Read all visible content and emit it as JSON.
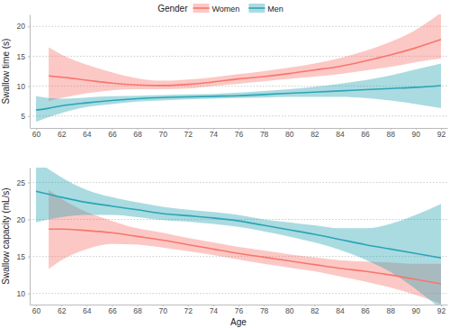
{
  "chart_data": [
    {
      "type": "line",
      "legend": "top",
      "legend_title": "Gender",
      "ylabel": "Swallow time (s)",
      "grid": true,
      "xlim": [
        59.5,
        92.5
      ],
      "xticks": [
        60,
        62,
        64,
        66,
        68,
        70,
        72,
        74,
        76,
        78,
        80,
        82,
        84,
        86,
        88,
        90,
        92
      ],
      "ylim": [
        3,
        22
      ],
      "yticks": [
        5,
        10,
        15,
        20
      ],
      "x": [
        60,
        61,
        62,
        64,
        66,
        68,
        70,
        72,
        74,
        76,
        78,
        80,
        82,
        84,
        86,
        88,
        90,
        92
      ],
      "series": [
        {
          "name": "Women",
          "color": "#f8766d",
          "values": [
            null,
            11.7,
            11.5,
            11.0,
            10.5,
            10.2,
            10.1,
            10.3,
            10.7,
            11.2,
            11.6,
            12.1,
            12.7,
            13.3,
            14.2,
            15.2,
            16.4,
            17.8
          ],
          "lower": [
            null,
            7.5,
            8.0,
            8.8,
            9.3,
            9.5,
            9.5,
            9.6,
            10.0,
            10.4,
            10.8,
            11.2,
            11.6,
            12.0,
            12.6,
            13.2,
            14.0,
            14.6
          ],
          "upper": [
            null,
            16.5,
            15.3,
            13.6,
            12.3,
            11.3,
            10.9,
            11.1,
            11.5,
            12.0,
            12.5,
            13.1,
            13.8,
            14.7,
            15.9,
            17.4,
            19.4,
            22.3
          ]
        },
        {
          "name": "Men",
          "color": "#2ba5b5",
          "values": [
            6.0,
            6.3,
            6.7,
            7.2,
            7.6,
            7.9,
            8.1,
            8.2,
            8.3,
            8.4,
            8.6,
            8.8,
            9.0,
            9.2,
            9.4,
            9.6,
            9.8,
            10.1
          ],
          "lower": [
            4.0,
            4.8,
            5.5,
            6.5,
            7.0,
            7.4,
            7.6,
            7.8,
            7.9,
            8.0,
            8.1,
            8.2,
            8.2,
            8.2,
            8.0,
            7.6,
            7.0,
            6.3
          ],
          "upper": [
            8.3,
            8.0,
            7.9,
            8.1,
            8.3,
            8.4,
            8.5,
            8.6,
            8.7,
            8.9,
            9.2,
            9.5,
            9.9,
            10.4,
            11.0,
            11.8,
            12.8,
            13.8
          ]
        }
      ]
    },
    {
      "type": "line",
      "xlabel": "Age",
      "ylabel": "Swallow capacity (mL/s)",
      "grid": true,
      "xlim": [
        59.5,
        92.5
      ],
      "xticks": [
        60,
        62,
        64,
        66,
        68,
        70,
        72,
        74,
        76,
        78,
        80,
        82,
        84,
        86,
        88,
        90,
        92
      ],
      "ylim": [
        8.5,
        27
      ],
      "yticks": [
        10,
        15,
        20,
        25
      ],
      "x": [
        60,
        61,
        62,
        64,
        66,
        68,
        70,
        72,
        74,
        76,
        78,
        80,
        82,
        84,
        86,
        88,
        90,
        92
      ],
      "series": [
        {
          "color": "#f8766d",
          "values": [
            null,
            18.7,
            18.7,
            18.5,
            18.2,
            17.7,
            17.2,
            16.6,
            16.0,
            15.4,
            14.9,
            14.4,
            13.9,
            13.4,
            13.0,
            12.5,
            11.9,
            11.3
          ],
          "lower": [
            null,
            13.3,
            14.5,
            16.0,
            16.7,
            16.6,
            16.2,
            15.7,
            15.2,
            14.6,
            14.0,
            13.5,
            13.0,
            12.3,
            11.6,
            10.8,
            9.8,
            8.6
          ],
          "upper": [
            null,
            24.0,
            22.8,
            21.0,
            19.8,
            18.8,
            18.2,
            17.5,
            16.9,
            16.3,
            15.8,
            15.3,
            14.9,
            14.5,
            14.3,
            14.2,
            14.0,
            14.0
          ]
        },
        {
          "color": "#2ba5b5",
          "values": [
            23.8,
            23.4,
            23.0,
            22.3,
            21.8,
            21.3,
            20.8,
            20.5,
            20.2,
            19.8,
            19.2,
            18.6,
            18.0,
            17.3,
            16.6,
            16.0,
            15.4,
            14.8
          ],
          "lower": [
            19.6,
            20.0,
            20.3,
            20.6,
            20.6,
            20.3,
            19.9,
            19.7,
            19.4,
            19.0,
            18.4,
            17.7,
            16.9,
            15.9,
            14.6,
            12.9,
            10.6,
            7.9
          ],
          "upper": [
            27.8,
            26.8,
            25.7,
            24.0,
            23.0,
            22.3,
            21.7,
            21.3,
            21.0,
            20.6,
            20.0,
            19.6,
            19.2,
            18.8,
            18.8,
            19.4,
            20.6,
            22.1
          ]
        }
      ]
    }
  ]
}
